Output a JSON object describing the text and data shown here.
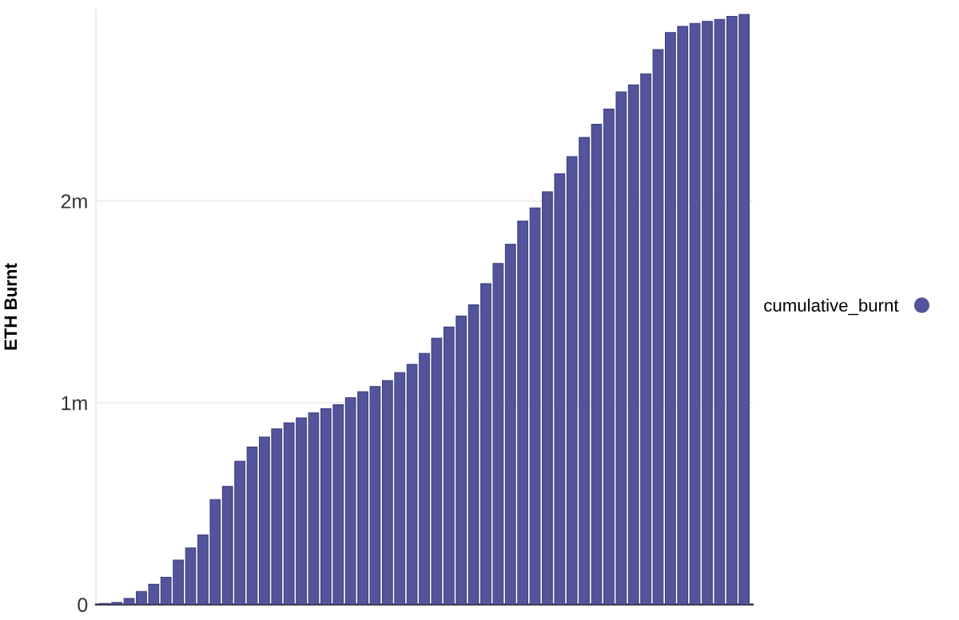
{
  "chart_data": {
    "type": "bar",
    "ylabel": "ETH Burnt",
    "categories": [
      null,
      null,
      null,
      null,
      null,
      null,
      null,
      null,
      null,
      null,
      null,
      null,
      null,
      null,
      null,
      null,
      null,
      null,
      null,
      null,
      null,
      null,
      null,
      null,
      null,
      null,
      null,
      null,
      null,
      null,
      null,
      null,
      null,
      null,
      null,
      null,
      null,
      null,
      null,
      null,
      null,
      null,
      null,
      null,
      null,
      null,
      null,
      null,
      null,
      null,
      null,
      null,
      null
    ],
    "series": [
      {
        "name": "cumulative_burnt",
        "color": "#52559b",
        "values": [
          5000,
          10000,
          30000,
          65000,
          100000,
          135000,
          220000,
          280000,
          345000,
          520000,
          585000,
          710000,
          780000,
          830000,
          870000,
          900000,
          925000,
          950000,
          970000,
          990000,
          1025000,
          1055000,
          1080000,
          1110000,
          1150000,
          1190000,
          1245000,
          1320000,
          1375000,
          1430000,
          1485000,
          1590000,
          1690000,
          1785000,
          1900000,
          1965000,
          2045000,
          2135000,
          2220000,
          2315000,
          2380000,
          2455000,
          2540000,
          2575000,
          2630000,
          2750000,
          2835000,
          2865000,
          2880000,
          2890000,
          2900000,
          2915000,
          2925000
        ]
      }
    ],
    "ylim": [
      0,
      2950000
    ],
    "yticks": [
      0,
      {
        "value": 1000000,
        "label": "1m"
      },
      {
        "value": 2000000,
        "label": "2m"
      }
    ],
    "tick_labels": "y",
    "grid": "y",
    "legend": "right"
  }
}
